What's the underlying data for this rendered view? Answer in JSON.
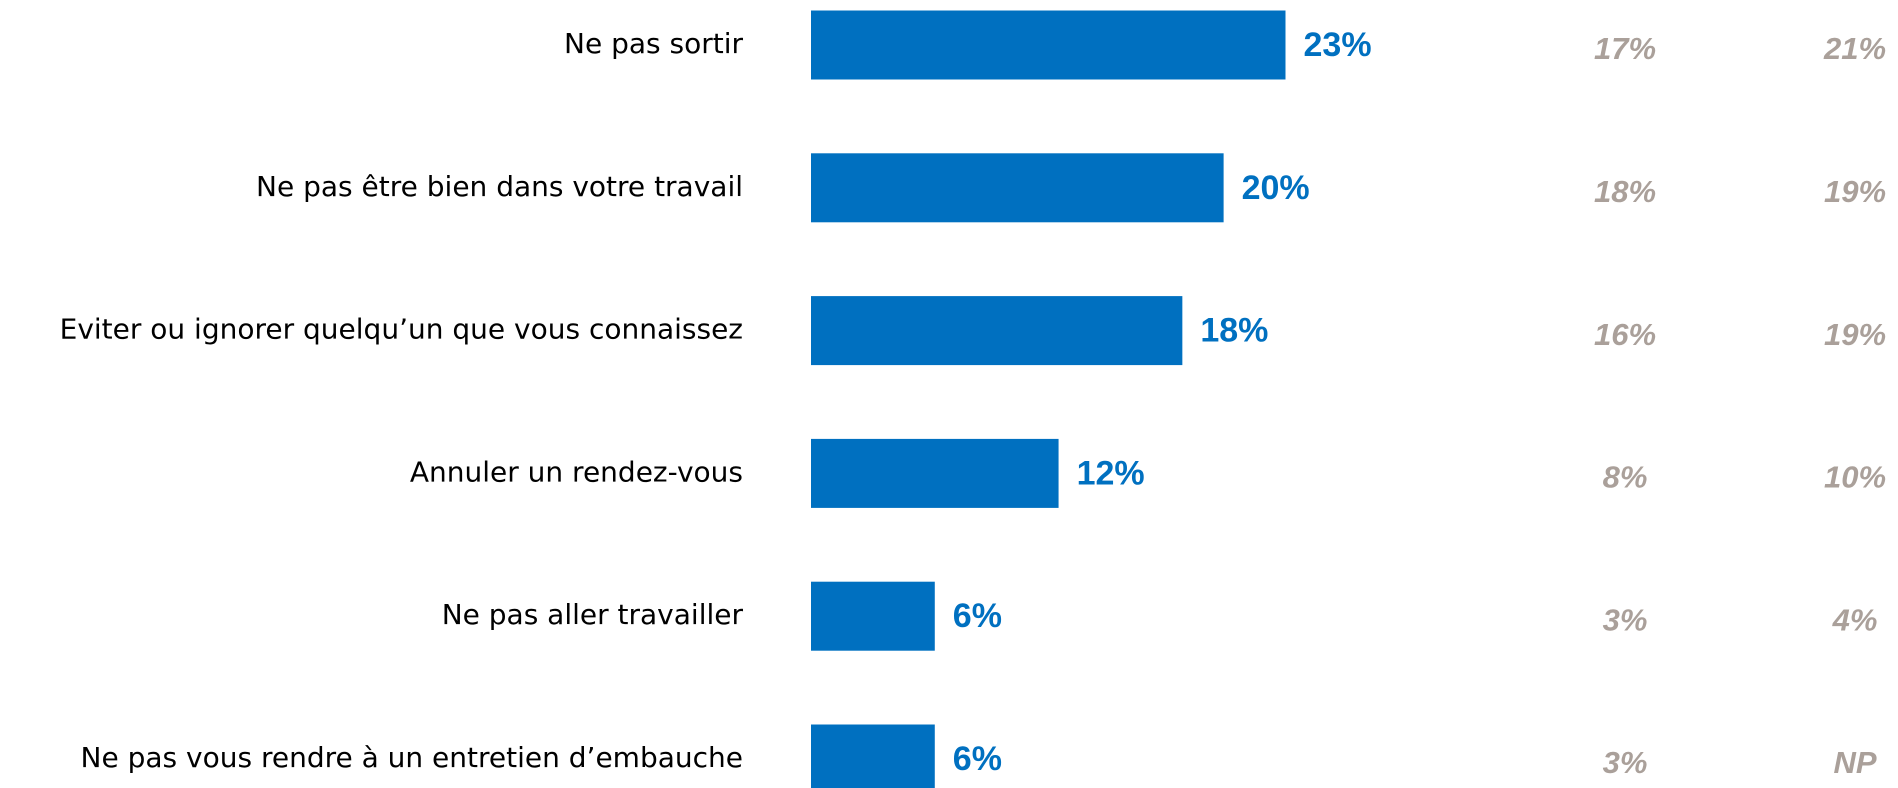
{
  "chart_data": {
    "type": "hbar",
    "categories": [
      "Ne pas sortir",
      "Ne pas être bien dans votre travail",
      "Eviter ou ignorer quelqu’un que vous connaissez",
      "Annuler un rendez-vous",
      "Ne pas aller travailler",
      "Ne pas vous rendre à un entretien d’embauche"
    ],
    "values": [
      23,
      20,
      18,
      12,
      6,
      6
    ],
    "value_labels": [
      "23%",
      "20%",
      "18%",
      "12%",
      "6%",
      "6%"
    ],
    "color": "#0070c0",
    "extra_columns": [
      [
        "17%",
        "18%",
        "16%",
        "8%",
        "3%",
        "3%"
      ],
      [
        "21%",
        "19%",
        "19%",
        "10%",
        "4%",
        "NP"
      ]
    ]
  }
}
